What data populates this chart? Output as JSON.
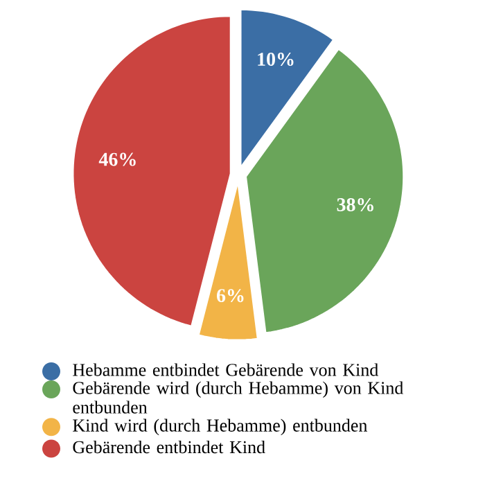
{
  "chart_data": {
    "type": "pie",
    "categories": [
      "Hebamme entbindet Gebärende von Kind",
      "Gebärende wird (durch Hebamme) von Kind entbunden",
      "Kind wird (durch Hebamme) entbunden",
      "Gebärende entbindet Kind"
    ],
    "values": [
      10,
      38,
      6,
      46
    ],
    "value_labels": [
      "10%",
      "38%",
      "6%",
      "46%"
    ],
    "colors": [
      "#3b6ea5",
      "#6aa55a",
      "#f2b447",
      "#cb4440"
    ],
    "legend": "bottom"
  }
}
